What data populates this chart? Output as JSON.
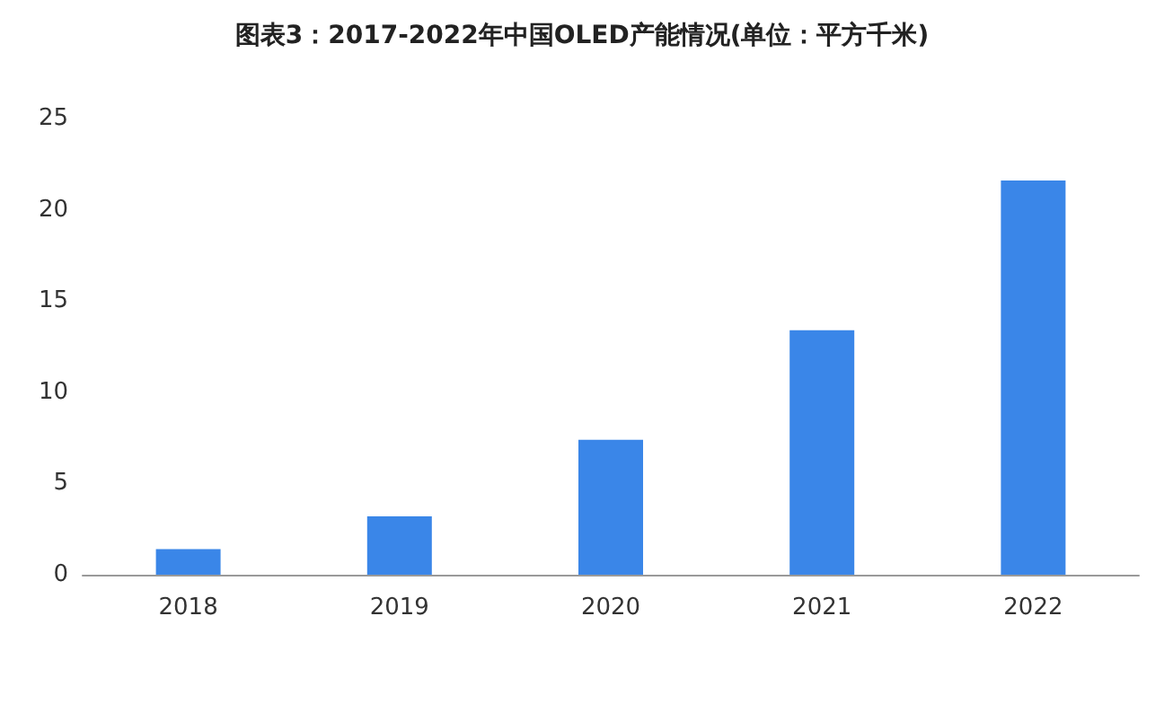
{
  "chart_data": {
    "type": "bar",
    "title": "图表3：2017-2022年中国OLED产能情况(单位：平方千米)",
    "categories": [
      "2018",
      "2019",
      "2020",
      "2021",
      "2022"
    ],
    "values": [
      1.4,
      3.2,
      7.4,
      13.4,
      21.6
    ],
    "color": "#3a86e8",
    "ylim": [
      0,
      25
    ],
    "yticks": [
      0,
      5,
      10,
      15,
      20,
      25
    ],
    "grid": false
  }
}
